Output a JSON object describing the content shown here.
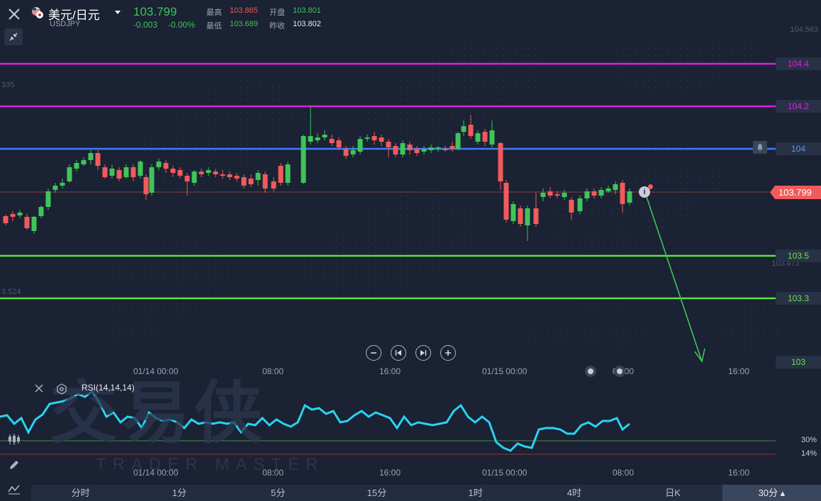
{
  "header": {
    "pair_name": "美元/日元",
    "pair_code": "USDJPY",
    "price": "103.799",
    "change": "-0.003",
    "change_pct": "-0.00%",
    "stats": {
      "high_label": "最高",
      "high_value": "103.865",
      "open_label": "开盘",
      "open_value": "103.801",
      "low_label": "最低",
      "low_value": "103.689",
      "prev_label": "昨收",
      "prev_value": "103.802"
    }
  },
  "price_axis": {
    "top_label": "104.563",
    "left_faint_top": "335",
    "left_faint_bottom": "3.524",
    "right_faint_mid": "103.472"
  },
  "levels": [
    {
      "label": "104.4",
      "color": "#e01ee0"
    },
    {
      "label": "104.2",
      "color": "#e01ee0"
    },
    {
      "label": "104",
      "color": "#3e7bff"
    },
    {
      "label": "103.5",
      "color": "#5fe13c"
    },
    {
      "label": "103.3",
      "color": "#5fe13c"
    },
    {
      "label": "103",
      "color": ""
    }
  ],
  "current_price_tag": "103.799",
  "time_axis": [
    "01/14 00:00",
    "08:00",
    "16:00",
    "01/15 00:00",
    "08:00",
    "16:00"
  ],
  "rsi": {
    "label": "RSI(14,14,14)",
    "level_high": "30%",
    "level_low": "14%"
  },
  "timeframes": [
    {
      "label": "分时",
      "active": false
    },
    {
      "label": "1分",
      "active": false
    },
    {
      "label": "5分",
      "active": false
    },
    {
      "label": "15分",
      "active": false
    },
    {
      "label": "1时",
      "active": false
    },
    {
      "label": "4时",
      "active": false
    },
    {
      "label": "日K",
      "active": false
    },
    {
      "label": "30分 ▴",
      "active": true
    }
  ],
  "watermark": {
    "cn": "交易侠",
    "en": "TRADER MASTER"
  },
  "colors": {
    "up": "#3fc45a",
    "down": "#f15b5b",
    "rsi_line": "#29d3f2",
    "bg": "#1a2233"
  }
}
